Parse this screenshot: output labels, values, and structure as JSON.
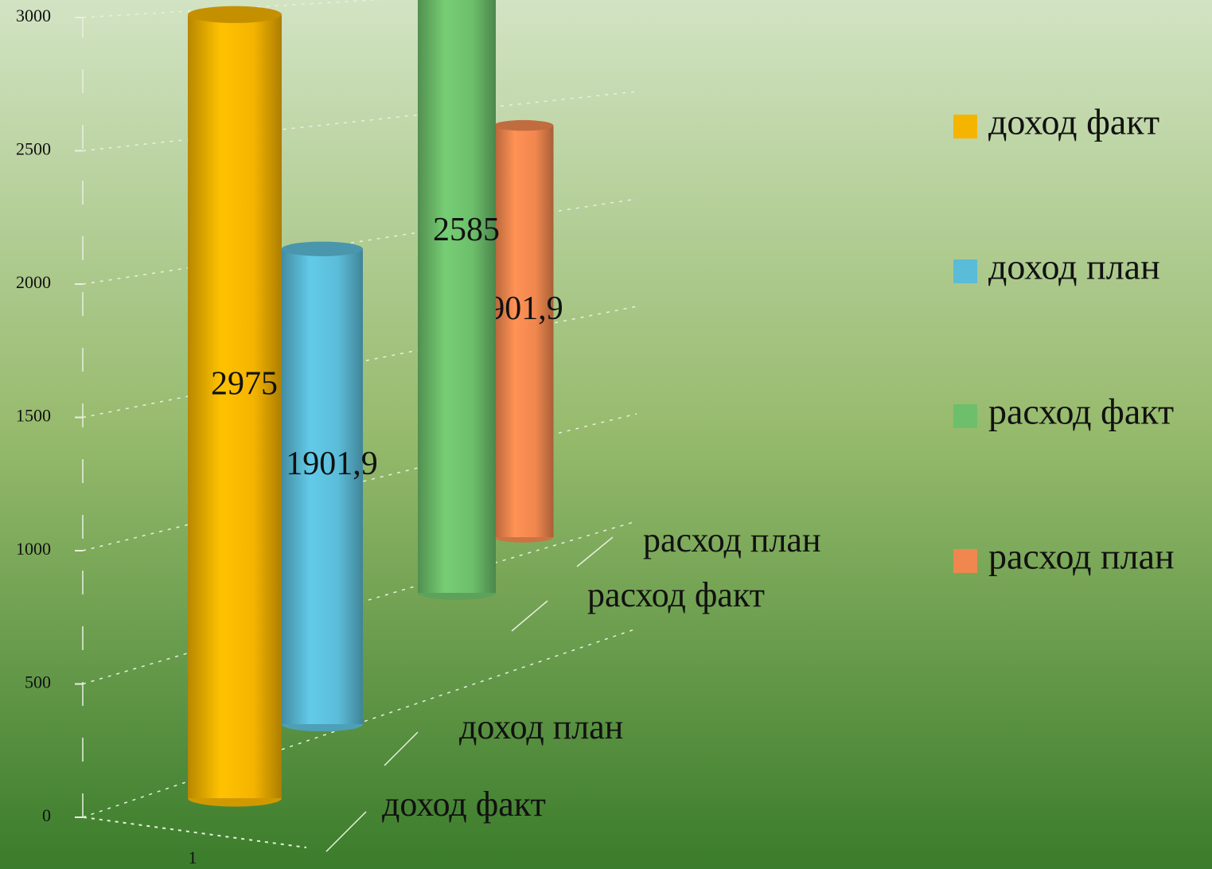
{
  "chart_data": {
    "type": "bar3d",
    "categories": [
      "1"
    ],
    "series": [
      {
        "name": "доход факт",
        "color": "#f5b400",
        "values": [
          2975
        ]
      },
      {
        "name": "доход план",
        "color": "#5bbcd8",
        "values": [
          1901.9
        ],
        "value_labels": [
          "1901,9"
        ]
      },
      {
        "name": "расход факт",
        "color": "#6dbf6b",
        "values": [
          2585
        ]
      },
      {
        "name": "расход план",
        "color": "#f0874f",
        "values": [
          1901.9
        ],
        "value_labels": [
          "1901,9"
        ]
      }
    ],
    "ylim": [
      0,
      3000
    ],
    "yticks": [
      0,
      500,
      1000,
      1500,
      2000,
      2500,
      3000
    ],
    "grid": true,
    "legend": "right"
  }
}
